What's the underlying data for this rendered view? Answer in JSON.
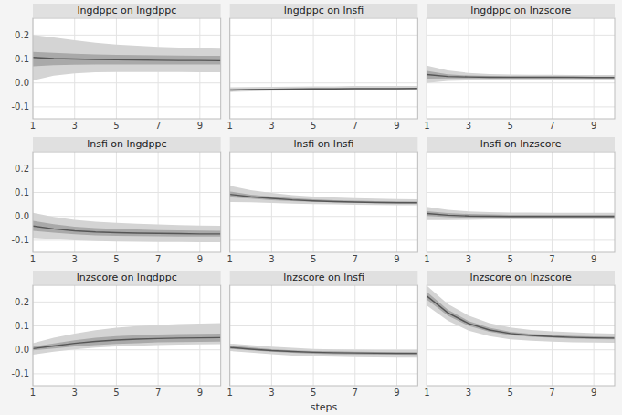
{
  "chart_data": [
    {
      "type": "line",
      "title": "lngdppc on lngdppc",
      "x": [
        1,
        2,
        3,
        4,
        5,
        6,
        7,
        8,
        9,
        10
      ],
      "values": [
        0.107,
        0.102,
        0.1,
        0.098,
        0.097,
        0.096,
        0.095,
        0.094,
        0.094,
        0.093
      ],
      "lower1": [
        0.07,
        0.074,
        0.076,
        0.077,
        0.077,
        0.077,
        0.077,
        0.077,
        0.077,
        0.077
      ],
      "upper1": [
        0.13,
        0.126,
        0.122,
        0.119,
        0.117,
        0.116,
        0.115,
        0.114,
        0.113,
        0.113
      ],
      "lower2": [
        0.01,
        0.03,
        0.04,
        0.045,
        0.046,
        0.046,
        0.046,
        0.046,
        0.045,
        0.045
      ],
      "upper2": [
        0.2,
        0.19,
        0.178,
        0.168,
        0.16,
        0.155,
        0.151,
        0.148,
        0.145,
        0.143
      ],
      "color": "#555555",
      "xlim": [
        1,
        10
      ],
      "ylim": [
        -0.15,
        0.27
      ],
      "xticks": [
        1,
        3,
        5,
        7,
        9
      ],
      "yticks": [
        -0.1,
        {
          "value": 0,
          "label": "0.0"
        },
        0.1,
        0.2
      ],
      "grid": true
    },
    {
      "type": "line",
      "title": "lngdppc on lnsfi",
      "x": [
        1,
        2,
        3,
        4,
        5,
        6,
        7,
        8,
        9,
        10
      ],
      "values": [
        -0.03,
        -0.028,
        -0.027,
        -0.026,
        -0.025,
        -0.025,
        -0.024,
        -0.024,
        -0.024,
        -0.023
      ],
      "lower1": [
        -0.032,
        -0.03,
        -0.029,
        -0.028,
        -0.027,
        -0.027,
        -0.026,
        -0.026,
        -0.026,
        -0.026
      ],
      "upper1": [
        -0.026,
        -0.025,
        -0.024,
        -0.023,
        -0.022,
        -0.022,
        -0.021,
        -0.021,
        -0.021,
        -0.021
      ],
      "lower2": [
        -0.038,
        -0.035,
        -0.033,
        -0.032,
        -0.031,
        -0.031,
        -0.03,
        -0.03,
        -0.03,
        -0.03
      ],
      "upper2": [
        -0.018,
        -0.017,
        -0.016,
        -0.015,
        -0.014,
        -0.014,
        -0.013,
        -0.013,
        -0.013,
        -0.013
      ],
      "color": "#555555",
      "xlim": [
        1,
        10
      ],
      "ylim": [
        -0.15,
        0.27
      ],
      "xticks": [
        1,
        3,
        5,
        7,
        9
      ],
      "yticks": [
        -0.1,
        {
          "value": 0,
          "label": "0.0"
        },
        0.1,
        0.2
      ],
      "grid": true,
      "tick_labels": "x"
    },
    {
      "type": "line",
      "title": "lngdppc on lnzscore",
      "x": [
        1,
        2,
        3,
        4,
        5,
        6,
        7,
        8,
        9,
        10
      ],
      "values": [
        0.035,
        0.027,
        0.025,
        0.024,
        0.024,
        0.024,
        0.024,
        0.024,
        0.023,
        0.023
      ],
      "lower1": [
        0.018,
        0.019,
        0.019,
        0.019,
        0.019,
        0.019,
        0.019,
        0.019,
        0.019,
        0.019
      ],
      "upper1": [
        0.05,
        0.036,
        0.031,
        0.029,
        0.028,
        0.028,
        0.028,
        0.027,
        0.027,
        0.027
      ],
      "lower2": [
        0.0,
        0.008,
        0.011,
        0.012,
        0.012,
        0.012,
        0.012,
        0.012,
        0.012,
        0.012
      ],
      "upper2": [
        0.072,
        0.052,
        0.042,
        0.037,
        0.035,
        0.034,
        0.034,
        0.033,
        0.033,
        0.033
      ],
      "color": "#555555",
      "xlim": [
        1,
        10
      ],
      "ylim": [
        -0.15,
        0.27
      ],
      "xticks": [
        1,
        3,
        5,
        7,
        9
      ],
      "yticks": [
        -0.1,
        {
          "value": 0,
          "label": "0.0"
        },
        0.1,
        0.2
      ],
      "grid": true,
      "tick_labels": "x"
    },
    {
      "type": "line",
      "title": "lnsfi on lngdppc",
      "x": [
        1,
        2,
        3,
        4,
        5,
        6,
        7,
        8,
        9,
        10
      ],
      "values": [
        -0.04,
        -0.052,
        -0.06,
        -0.065,
        -0.068,
        -0.07,
        -0.071,
        -0.072,
        -0.073,
        -0.073
      ],
      "lower1": [
        -0.06,
        -0.068,
        -0.075,
        -0.079,
        -0.081,
        -0.082,
        -0.083,
        -0.084,
        -0.084,
        -0.084
      ],
      "upper1": [
        -0.018,
        -0.033,
        -0.043,
        -0.049,
        -0.053,
        -0.055,
        -0.057,
        -0.058,
        -0.059,
        -0.06
      ],
      "lower2": [
        -0.09,
        -0.095,
        -0.1,
        -0.103,
        -0.105,
        -0.106,
        -0.107,
        -0.107,
        -0.108,
        -0.108
      ],
      "upper2": [
        0.015,
        -0.002,
        -0.014,
        -0.022,
        -0.027,
        -0.031,
        -0.034,
        -0.036,
        -0.038,
        -0.039
      ],
      "color": "#555555",
      "xlim": [
        1,
        10
      ],
      "ylim": [
        -0.15,
        0.27
      ],
      "xticks": [
        1,
        3,
        5,
        7,
        9
      ],
      "yticks": [
        -0.1,
        {
          "value": 0,
          "label": "0.0"
        },
        0.1,
        0.2
      ],
      "grid": true
    },
    {
      "type": "line",
      "title": "lnsfi on lnsfi",
      "x": [
        1,
        2,
        3,
        4,
        5,
        6,
        7,
        8,
        9,
        10
      ],
      "values": [
        0.092,
        0.082,
        0.075,
        0.069,
        0.065,
        0.062,
        0.06,
        0.058,
        0.057,
        0.057
      ],
      "lower1": [
        0.08,
        0.074,
        0.068,
        0.064,
        0.061,
        0.059,
        0.057,
        0.056,
        0.055,
        0.054
      ],
      "upper1": [
        0.104,
        0.091,
        0.083,
        0.076,
        0.071,
        0.068,
        0.066,
        0.064,
        0.063,
        0.062
      ],
      "lower2": [
        0.06,
        0.059,
        0.056,
        0.053,
        0.051,
        0.05,
        0.049,
        0.048,
        0.047,
        0.047
      ],
      "upper2": [
        0.128,
        0.11,
        0.098,
        0.089,
        0.083,
        0.079,
        0.076,
        0.074,
        0.072,
        0.071
      ],
      "color": "#555555",
      "xlim": [
        1,
        10
      ],
      "ylim": [
        -0.15,
        0.27
      ],
      "xticks": [
        1,
        3,
        5,
        7,
        9
      ],
      "yticks": [
        -0.1,
        {
          "value": 0,
          "label": "0.0"
        },
        0.1,
        0.2
      ],
      "grid": true,
      "tick_labels": "x"
    },
    {
      "type": "line",
      "title": "lnsfi on lnzscore",
      "x": [
        1,
        2,
        3,
        4,
        5,
        6,
        7,
        8,
        9,
        10
      ],
      "values": [
        0.012,
        0.005,
        0.002,
        0.001,
        0.0,
        0.0,
        0.0,
        0.0,
        0.0,
        0.0
      ],
      "lower1": [
        0.002,
        -0.003,
        -0.006,
        -0.007,
        -0.008,
        -0.008,
        -0.008,
        -0.008,
        -0.008,
        -0.009
      ],
      "upper1": [
        0.022,
        0.014,
        0.01,
        0.008,
        0.007,
        0.007,
        0.007,
        0.007,
        0.007,
        0.007
      ],
      "lower2": [
        -0.015,
        -0.015,
        -0.014,
        -0.013,
        -0.013,
        -0.013,
        -0.013,
        -0.013,
        -0.013,
        -0.013
      ],
      "upper2": [
        0.04,
        0.028,
        0.021,
        0.018,
        0.016,
        0.016,
        0.015,
        0.015,
        0.015,
        0.015
      ],
      "color": "#555555",
      "xlim": [
        1,
        10
      ],
      "ylim": [
        -0.15,
        0.27
      ],
      "xticks": [
        1,
        3,
        5,
        7,
        9
      ],
      "yticks": [
        -0.1,
        {
          "value": 0,
          "label": "0.0"
        },
        0.1,
        0.2
      ],
      "grid": true,
      "tick_labels": "x"
    },
    {
      "type": "line",
      "title": "lnzscore on lngdppc",
      "x": [
        1,
        2,
        3,
        4,
        5,
        6,
        7,
        8,
        9,
        10
      ],
      "values": [
        0.005,
        0.016,
        0.027,
        0.035,
        0.041,
        0.045,
        0.047,
        0.049,
        0.05,
        0.051
      ],
      "lower1": [
        -0.002,
        0.006,
        0.014,
        0.02,
        0.025,
        0.028,
        0.031,
        0.032,
        0.033,
        0.034
      ],
      "upper1": [
        0.013,
        0.027,
        0.04,
        0.05,
        0.057,
        0.061,
        0.064,
        0.066,
        0.067,
        0.068
      ],
      "lower2": [
        -0.02,
        -0.008,
        0.002,
        0.009,
        0.014,
        0.017,
        0.02,
        0.022,
        0.023,
        0.024
      ],
      "upper2": [
        0.028,
        0.05,
        0.068,
        0.082,
        0.092,
        0.099,
        0.104,
        0.108,
        0.11,
        0.112
      ],
      "color": "#555555",
      "xlim": [
        1,
        10
      ],
      "ylim": [
        -0.15,
        0.27
      ],
      "xticks": [
        1,
        3,
        5,
        7,
        9
      ],
      "yticks": [
        -0.1,
        {
          "value": 0,
          "label": "0.0"
        },
        0.1,
        0.2
      ],
      "grid": true
    },
    {
      "type": "line",
      "title": "lnzscore on lnsfi",
      "xlabel": "steps",
      "x": [
        1,
        2,
        3,
        4,
        5,
        6,
        7,
        8,
        9,
        10
      ],
      "values": [
        0.01,
        0.003,
        -0.003,
        -0.007,
        -0.01,
        -0.012,
        -0.013,
        -0.014,
        -0.015,
        -0.015
      ],
      "lower1": [
        0.004,
        -0.002,
        -0.008,
        -0.013,
        -0.016,
        -0.018,
        -0.019,
        -0.02,
        -0.02,
        -0.021
      ],
      "upper1": [
        0.018,
        0.01,
        0.003,
        -0.002,
        -0.005,
        -0.006,
        -0.008,
        -0.009,
        -0.009,
        -0.01
      ],
      "lower2": [
        -0.005,
        -0.012,
        -0.018,
        -0.024,
        -0.027,
        -0.029,
        -0.031,
        -0.032,
        -0.033,
        -0.033
      ],
      "upper2": [
        0.026,
        0.02,
        0.013,
        0.008,
        0.004,
        0.002,
        0.001,
        0.0,
        0.0,
        0.0
      ],
      "color": "#555555",
      "xlim": [
        1,
        10
      ],
      "ylim": [
        -0.15,
        0.27
      ],
      "xticks": [
        1,
        3,
        5,
        7,
        9
      ],
      "yticks": [
        -0.1,
        {
          "value": 0,
          "label": "0.0"
        },
        0.1,
        0.2
      ],
      "grid": true,
      "tick_labels": "x"
    },
    {
      "type": "line",
      "title": "lnzscore on lnzscore",
      "x": [
        1,
        2,
        3,
        4,
        5,
        6,
        7,
        8,
        9,
        10
      ],
      "values": [
        0.225,
        0.155,
        0.11,
        0.083,
        0.068,
        0.06,
        0.055,
        0.052,
        0.05,
        0.049
      ],
      "lower1": [
        0.21,
        0.143,
        0.1,
        0.075,
        0.061,
        0.054,
        0.05,
        0.047,
        0.045,
        0.044
      ],
      "upper1": [
        0.242,
        0.168,
        0.12,
        0.092,
        0.075,
        0.067,
        0.062,
        0.058,
        0.056,
        0.054
      ],
      "lower2": [
        0.185,
        0.122,
        0.08,
        0.057,
        0.044,
        0.038,
        0.034,
        0.031,
        0.03,
        0.029
      ],
      "upper2": [
        0.268,
        0.192,
        0.143,
        0.112,
        0.093,
        0.083,
        0.077,
        0.073,
        0.07,
        0.068
      ],
      "color": "#555555",
      "xlim": [
        1,
        10
      ],
      "ylim": [
        -0.15,
        0.27
      ],
      "xticks": [
        1,
        3,
        5,
        7,
        9
      ],
      "yticks": [
        -0.1,
        {
          "value": 0,
          "label": "0.0"
        },
        0.1,
        0.2
      ],
      "grid": true,
      "tick_labels": "x"
    }
  ]
}
